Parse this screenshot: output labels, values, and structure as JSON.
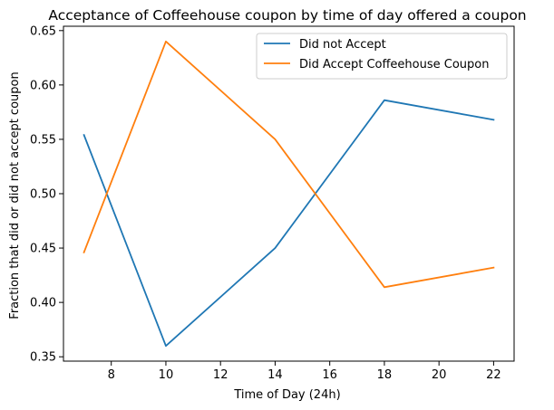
{
  "chart_data": {
    "type": "line",
    "title": "Acceptance of Coffeehouse coupon by time of day offered a coupon",
    "xlabel": "Time of Day (24h)",
    "ylabel": "Fraction that did or did not accept coupon",
    "x": [
      7,
      10,
      14,
      18,
      22
    ],
    "xlim": [
      6.25,
      22.75
    ],
    "ylim": [
      0.346,
      0.654
    ],
    "xticks": [
      8,
      10,
      12,
      14,
      16,
      18,
      20,
      22
    ],
    "yticks": [
      0.35,
      0.4,
      0.45,
      0.5,
      0.55,
      0.6,
      0.65
    ],
    "ytick_labels": [
      "0.35",
      "0.40",
      "0.45",
      "0.50",
      "0.55",
      "0.60",
      "0.65"
    ],
    "grid": false,
    "legend_position": "top-right",
    "series": [
      {
        "name": "Did not Accept",
        "color": "#1f77b4",
        "values": [
          0.554,
          0.36,
          0.45,
          0.586,
          0.568
        ]
      },
      {
        "name": "Did Accept Coffeehouse Coupon",
        "color": "#ff7f0e",
        "values": [
          0.446,
          0.64,
          0.55,
          0.414,
          0.432
        ]
      }
    ]
  }
}
